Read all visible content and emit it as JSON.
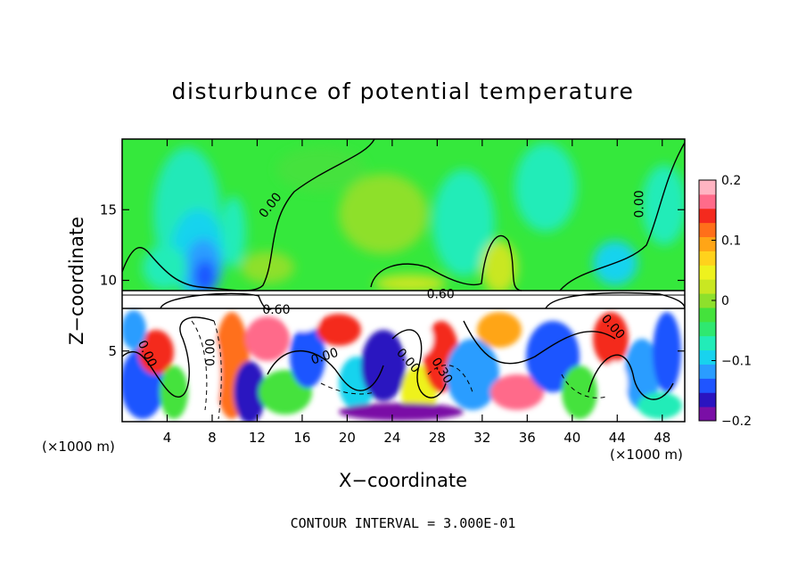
{
  "chart_data": {
    "type": "heatmap",
    "title": "disturbunce of potential temperature",
    "xlabel": "X−coordinate",
    "ylabel": "Z−coordinate",
    "x_unit_note": "(×1000 m)",
    "z_unit_note": "(×1000 m)",
    "xlim": [
      0,
      50
    ],
    "ylim": [
      0,
      20
    ],
    "x_ticks": [
      4,
      8,
      12,
      16,
      20,
      24,
      28,
      32,
      36,
      40,
      44,
      48
    ],
    "y_ticks": [
      5,
      10,
      15
    ],
    "colorbar": {
      "range": [
        -0.2,
        0.2
      ],
      "ticks": [
        "0.2",
        "0.1",
        "0",
        "−0.1",
        "−0.2"
      ],
      "tick_values": [
        0.2,
        0.1,
        0,
        -0.1,
        -0.2
      ],
      "colors": [
        "#7a0fa6",
        "#2a14c0",
        "#1f55ff",
        "#2a9dff",
        "#18d3ee",
        "#22ecb8",
        "#2fe870",
        "#44e23c",
        "#8ee02c",
        "#c9e722",
        "#eef21e",
        "#ffd21c",
        "#ffa516",
        "#ff6f1a",
        "#f42a1e",
        "#ff6b8a",
        "#ffb4c2"
      ]
    },
    "contour_labels": [
      {
        "text": "0.00",
        "x": 13.2,
        "z": 15.3,
        "angle": -52
      },
      {
        "text": "0.00",
        "x": 46.0,
        "z": 15.4,
        "angle": -90
      },
      {
        "text": "0.60",
        "x": 28.3,
        "z": 9.0,
        "angle": 0
      },
      {
        "text": "0.60",
        "x": 13.7,
        "z": 7.9,
        "angle": 0
      },
      {
        "text": "0.00",
        "x": 18.0,
        "z": 4.6,
        "angle": -18
      },
      {
        "text": "0.00",
        "x": 7.9,
        "z": 4.9,
        "angle": -90
      },
      {
        "text": "0.00",
        "x": 2.2,
        "z": 4.8,
        "angle": 65
      },
      {
        "text": "0.00",
        "x": 25.4,
        "z": 4.3,
        "angle": 48
      },
      {
        "text": "0.30",
        "x": 28.4,
        "z": 3.6,
        "angle": 58
      },
      {
        "text": "0.00",
        "x": 43.6,
        "z": 6.7,
        "angle": 48
      }
    ],
    "contour_interval_note": "CONTOUR INTERVAL = 3.000E-01",
    "grid": false,
    "legend": "colorbar-right"
  }
}
